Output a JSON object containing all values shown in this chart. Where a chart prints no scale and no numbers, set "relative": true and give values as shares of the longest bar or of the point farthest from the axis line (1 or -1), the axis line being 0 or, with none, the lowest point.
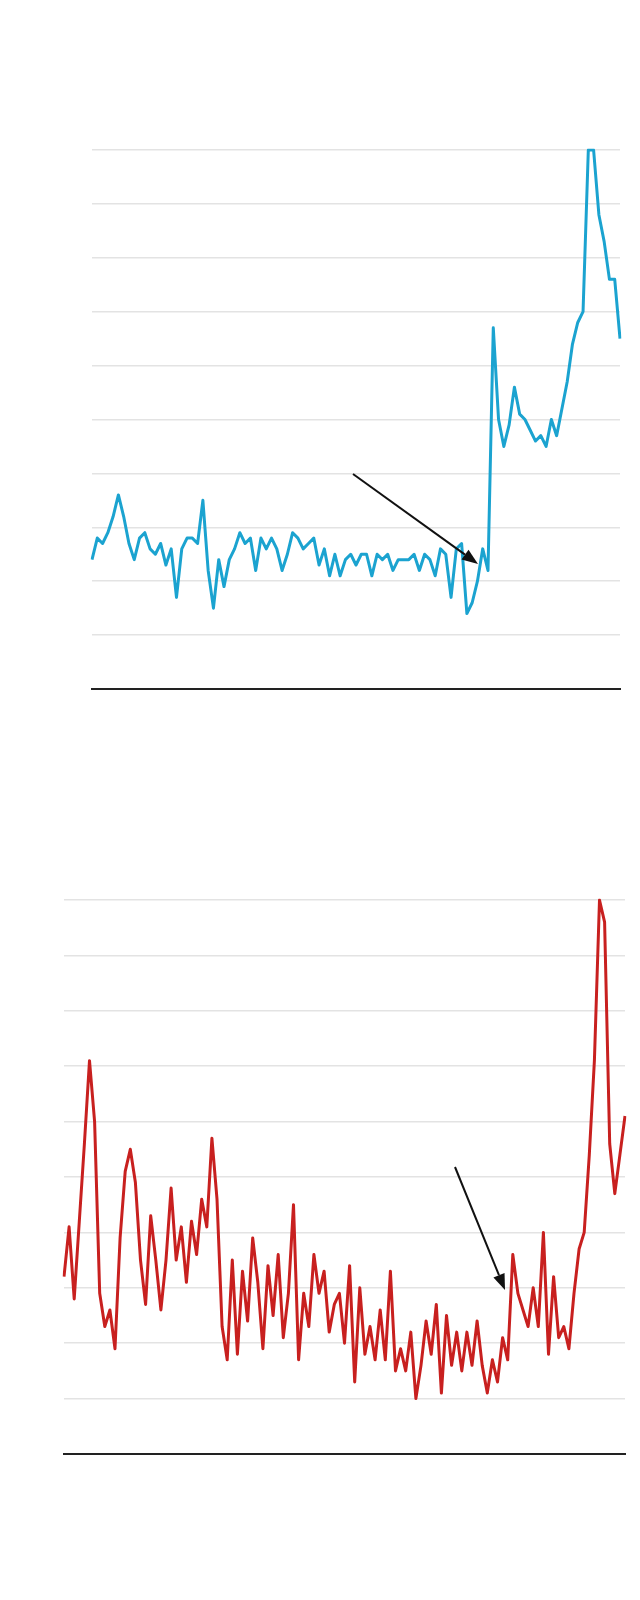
{
  "chart_data": [
    {
      "type": "line",
      "relative": true,
      "grid": "y",
      "color": "#1ba3d0",
      "categories": [
        null,
        null,
        null,
        null,
        null,
        null,
        null,
        null,
        null,
        null,
        null,
        null,
        null,
        null,
        null,
        null,
        null,
        null,
        null,
        null,
        null,
        null,
        null,
        null,
        null,
        null,
        null,
        null,
        null,
        null,
        null,
        null,
        null,
        null,
        null,
        null,
        null,
        null,
        null,
        null,
        null,
        null,
        null,
        null,
        null,
        null,
        null,
        null,
        null,
        null,
        null,
        null,
        null,
        null,
        null,
        null,
        null,
        null,
        null,
        null,
        null,
        null,
        null,
        null,
        null,
        null,
        null,
        null,
        null,
        null,
        null,
        null,
        null,
        null,
        null,
        null,
        null,
        null,
        null,
        null,
        null,
        null,
        null,
        null,
        null,
        null,
        null,
        null,
        null,
        null,
        null,
        null,
        null,
        null,
        null,
        null,
        null,
        null,
        null,
        null,
        null
      ],
      "values": [
        0.24,
        0.28,
        0.27,
        0.29,
        0.32,
        0.36,
        0.32,
        0.27,
        0.24,
        0.28,
        0.29,
        0.26,
        0.25,
        0.27,
        0.23,
        0.26,
        0.17,
        0.26,
        0.28,
        0.28,
        0.27,
        0.35,
        0.22,
        0.15,
        0.24,
        0.19,
        0.24,
        0.26,
        0.29,
        0.27,
        0.28,
        0.22,
        0.28,
        0.26,
        0.28,
        0.26,
        0.22,
        0.25,
        0.29,
        0.28,
        0.26,
        0.27,
        0.28,
        0.23,
        0.26,
        0.21,
        0.25,
        0.21,
        0.24,
        0.25,
        0.23,
        0.25,
        0.25,
        0.21,
        0.25,
        0.24,
        0.25,
        0.22,
        0.24,
        0.24,
        0.24,
        0.25,
        0.22,
        0.25,
        0.24,
        0.21,
        0.26,
        0.25,
        0.17,
        0.26,
        0.27,
        0.14,
        0.16,
        0.2,
        0.26,
        0.22,
        0.67,
        0.5,
        0.45,
        0.49,
        0.56,
        0.51,
        0.5,
        0.48,
        0.46,
        0.47,
        0.45,
        0.5,
        0.47,
        0.52,
        0.57,
        0.64,
        0.68,
        0.7,
        1.0,
        1.0,
        0.88,
        0.83,
        0.76,
        0.76,
        0.65
      ]
    },
    {
      "type": "line",
      "relative": true,
      "grid": "y",
      "color": "#c8201f",
      "categories": [
        null,
        null,
        null,
        null,
        null,
        null,
        null,
        null,
        null,
        null,
        null,
        null,
        null,
        null,
        null,
        null,
        null,
        null,
        null,
        null,
        null,
        null,
        null,
        null,
        null,
        null,
        null,
        null,
        null,
        null,
        null,
        null,
        null,
        null,
        null,
        null,
        null,
        null,
        null,
        null,
        null,
        null,
        null,
        null,
        null,
        null,
        null,
        null,
        null,
        null,
        null,
        null,
        null,
        null,
        null,
        null,
        null,
        null,
        null,
        null,
        null,
        null,
        null,
        null,
        null,
        null,
        null,
        null,
        null,
        null,
        null,
        null,
        null,
        null,
        null,
        null,
        null,
        null,
        null,
        null,
        null,
        null,
        null,
        null,
        null,
        null,
        null,
        null,
        null,
        null,
        null,
        null,
        null,
        null,
        null,
        null,
        null,
        null,
        null,
        null,
        null,
        null,
        null,
        null,
        null,
        null,
        null,
        null,
        null,
        null,
        null
      ],
      "values": [
        0.32,
        0.41,
        0.28,
        0.42,
        0.56,
        0.71,
        0.6,
        0.29,
        0.23,
        0.26,
        0.19,
        0.39,
        0.51,
        0.55,
        0.49,
        0.35,
        0.27,
        0.43,
        0.35,
        0.26,
        0.35,
        0.48,
        0.35,
        0.41,
        0.31,
        0.42,
        0.36,
        0.46,
        0.41,
        0.57,
        0.46,
        0.23,
        0.17,
        0.35,
        0.18,
        0.33,
        0.24,
        0.39,
        0.31,
        0.19,
        0.34,
        0.25,
        0.36,
        0.21,
        0.29,
        0.45,
        0.17,
        0.29,
        0.23,
        0.36,
        0.29,
        0.33,
        0.22,
        0.27,
        0.29,
        0.2,
        0.34,
        0.13,
        0.3,
        0.18,
        0.23,
        0.17,
        0.26,
        0.17,
        0.33,
        0.15,
        0.19,
        0.15,
        0.22,
        0.1,
        0.16,
        0.24,
        0.18,
        0.27,
        0.11,
        0.25,
        0.16,
        0.22,
        0.15,
        0.22,
        0.16,
        0.24,
        0.16,
        0.11,
        0.17,
        0.13,
        0.21,
        0.17,
        0.36,
        0.29,
        0.26,
        0.23,
        0.3,
        0.23,
        0.4,
        0.18,
        0.32,
        0.21,
        0.23,
        0.19,
        0.29,
        0.37,
        0.4,
        0.54,
        0.71,
        1.0,
        0.96,
        0.56,
        0.47,
        0.54,
        0.61
      ]
    }
  ]
}
